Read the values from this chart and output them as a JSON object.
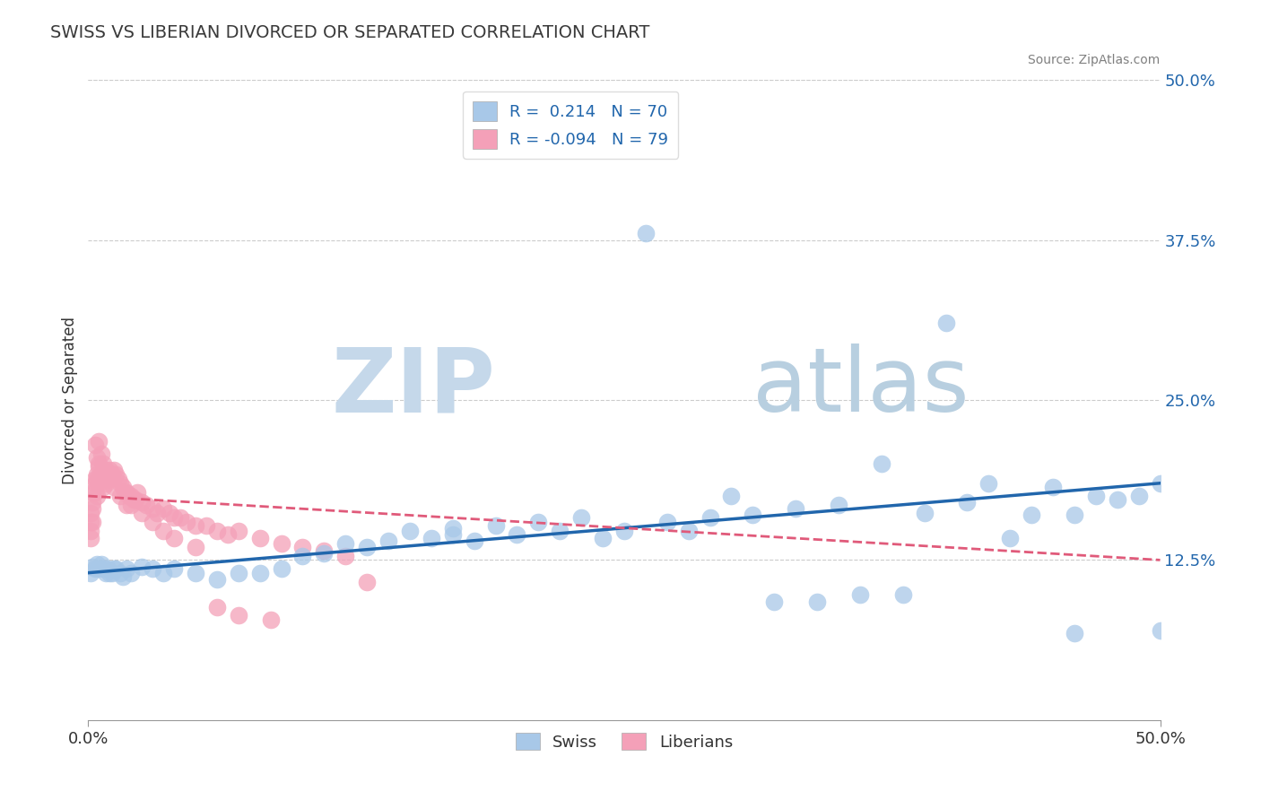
{
  "title": "SWISS VS LIBERIAN DIVORCED OR SEPARATED CORRELATION CHART",
  "source": "Source: ZipAtlas.com",
  "ylabel": "Divorced or Separated",
  "xlim": [
    0.0,
    0.5
  ],
  "ylim": [
    0.0,
    0.5
  ],
  "xticks": [
    0.0,
    0.5
  ],
  "xtick_labels": [
    "0.0%",
    "50.0%"
  ],
  "yticks_right": [
    0.125,
    0.25,
    0.375,
    0.5
  ],
  "ytick_labels_right": [
    "12.5%",
    "25.0%",
    "37.5%",
    "50.0%"
  ],
  "legend_r_swiss": " 0.214",
  "legend_n_swiss": "70",
  "legend_r_liberian": "-0.094",
  "legend_n_liberian": "79",
  "swiss_color": "#a8c8e8",
  "liberian_color": "#f4a0b8",
  "swiss_line_color": "#2166ac",
  "liberian_line_color": "#e05a7a",
  "swiss_scatter": {
    "x": [
      0.001,
      0.002,
      0.003,
      0.004,
      0.005,
      0.006,
      0.007,
      0.008,
      0.009,
      0.01,
      0.011,
      0.012,
      0.013,
      0.015,
      0.016,
      0.018,
      0.02,
      0.025,
      0.03,
      0.035,
      0.04,
      0.05,
      0.06,
      0.07,
      0.08,
      0.09,
      0.1,
      0.11,
      0.12,
      0.13,
      0.14,
      0.15,
      0.16,
      0.17,
      0.18,
      0.2,
      0.22,
      0.24,
      0.26,
      0.28,
      0.3,
      0.32,
      0.34,
      0.36,
      0.37,
      0.38,
      0.4,
      0.42,
      0.43,
      0.45,
      0.46,
      0.47,
      0.49,
      0.5,
      0.25,
      0.27,
      0.29,
      0.31,
      0.33,
      0.35,
      0.39,
      0.41,
      0.44,
      0.46,
      0.48,
      0.5,
      0.17,
      0.19,
      0.21,
      0.23
    ],
    "y": [
      0.115,
      0.12,
      0.118,
      0.122,
      0.118,
      0.122,
      0.118,
      0.115,
      0.118,
      0.115,
      0.115,
      0.118,
      0.118,
      0.115,
      0.112,
      0.118,
      0.115,
      0.12,
      0.118,
      0.115,
      0.118,
      0.115,
      0.11,
      0.115,
      0.115,
      0.118,
      0.128,
      0.13,
      0.138,
      0.135,
      0.14,
      0.148,
      0.142,
      0.145,
      0.14,
      0.145,
      0.148,
      0.142,
      0.38,
      0.148,
      0.175,
      0.092,
      0.092,
      0.098,
      0.2,
      0.098,
      0.31,
      0.185,
      0.142,
      0.182,
      0.068,
      0.175,
      0.175,
      0.185,
      0.148,
      0.155,
      0.158,
      0.16,
      0.165,
      0.168,
      0.162,
      0.17,
      0.16,
      0.16,
      0.172,
      0.07,
      0.15,
      0.152,
      0.155,
      0.158
    ]
  },
  "liberian_scatter": {
    "x": [
      0.001,
      0.001,
      0.001,
      0.001,
      0.002,
      0.002,
      0.002,
      0.002,
      0.003,
      0.003,
      0.003,
      0.004,
      0.004,
      0.004,
      0.005,
      0.005,
      0.005,
      0.006,
      0.006,
      0.007,
      0.007,
      0.008,
      0.008,
      0.009,
      0.009,
      0.01,
      0.01,
      0.011,
      0.012,
      0.013,
      0.014,
      0.015,
      0.016,
      0.017,
      0.018,
      0.019,
      0.02,
      0.021,
      0.022,
      0.023,
      0.025,
      0.027,
      0.03,
      0.032,
      0.035,
      0.038,
      0.04,
      0.043,
      0.046,
      0.05,
      0.055,
      0.06,
      0.065,
      0.07,
      0.08,
      0.09,
      0.1,
      0.11,
      0.12,
      0.13,
      0.003,
      0.004,
      0.005,
      0.006,
      0.007,
      0.008,
      0.01,
      0.012,
      0.015,
      0.018,
      0.02,
      0.025,
      0.03,
      0.035,
      0.04,
      0.05,
      0.06,
      0.07,
      0.085
    ],
    "y": [
      0.148,
      0.162,
      0.142,
      0.155,
      0.17,
      0.178,
      0.165,
      0.155,
      0.185,
      0.188,
      0.178,
      0.192,
      0.188,
      0.175,
      0.198,
      0.185,
      0.2,
      0.192,
      0.188,
      0.188,
      0.182,
      0.192,
      0.185,
      0.192,
      0.188,
      0.195,
      0.188,
      0.192,
      0.195,
      0.192,
      0.188,
      0.185,
      0.182,
      0.178,
      0.178,
      0.175,
      0.175,
      0.172,
      0.172,
      0.178,
      0.17,
      0.168,
      0.165,
      0.162,
      0.165,
      0.162,
      0.158,
      0.158,
      0.155,
      0.152,
      0.152,
      0.148,
      0.145,
      0.148,
      0.142,
      0.138,
      0.135,
      0.132,
      0.128,
      0.108,
      0.215,
      0.205,
      0.218,
      0.208,
      0.2,
      0.195,
      0.19,
      0.182,
      0.175,
      0.168,
      0.168,
      0.162,
      0.155,
      0.148,
      0.142,
      0.135,
      0.088,
      0.082,
      0.078
    ]
  },
  "background_color": "#ffffff",
  "grid_color": "#cccccc",
  "watermark_zip": "ZIP",
  "watermark_atlas": "atlas",
  "watermark_color_zip": "#c5d8ea",
  "watermark_color_atlas": "#b8cfe0"
}
